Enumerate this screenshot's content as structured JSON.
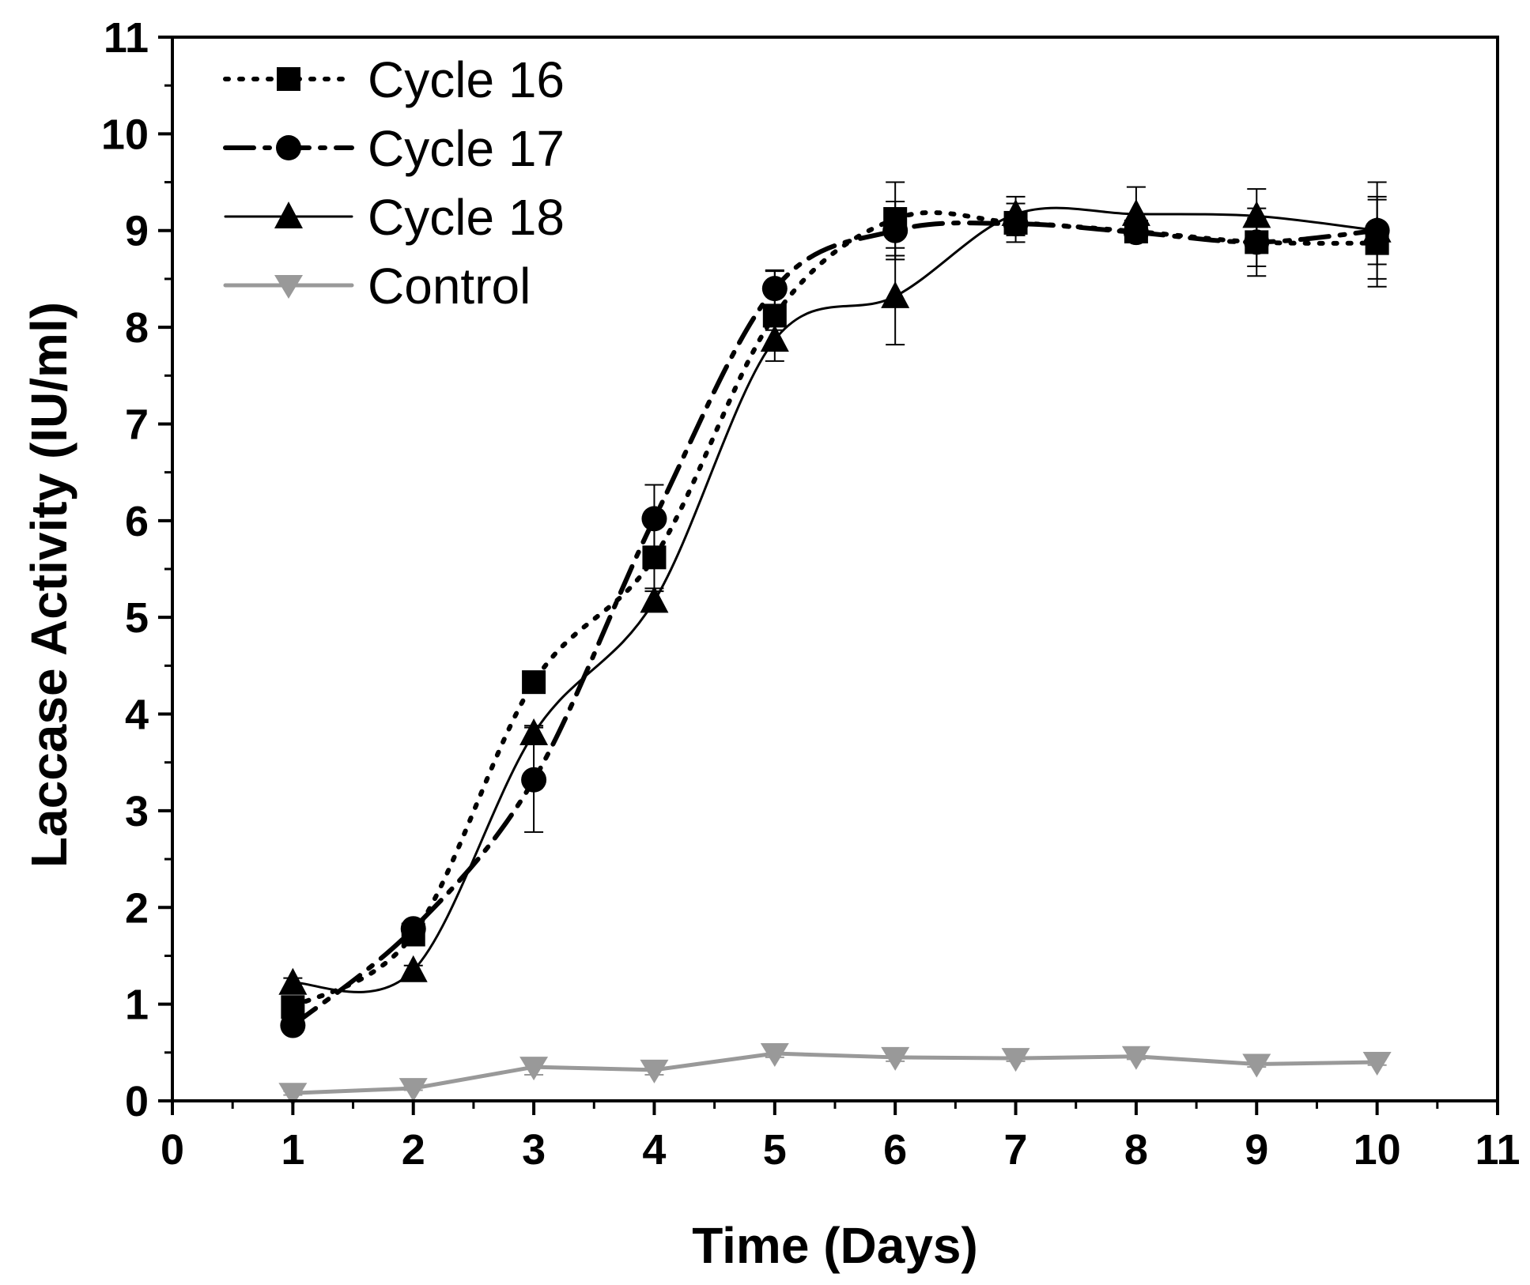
{
  "chart_data": {
    "type": "line",
    "xlabel": "Time (Days)",
    "ylabel": "Laccase Activity (IU/ml)",
    "xlim": [
      0,
      11
    ],
    "ylim": [
      0,
      11
    ],
    "x_ticks": [
      0,
      1,
      2,
      3,
      4,
      5,
      6,
      7,
      8,
      9,
      10,
      11
    ],
    "y_ticks": [
      0,
      1,
      2,
      3,
      4,
      5,
      6,
      7,
      8,
      9,
      10,
      11
    ],
    "grid": false,
    "legend_position": "top-left",
    "x": [
      1,
      2,
      3,
      4,
      5,
      6,
      7,
      8,
      9,
      10
    ],
    "series": [
      {
        "name": "Cycle 16",
        "marker": "square",
        "line_style": "dotted",
        "color": "#000000",
        "values": [
          0.97,
          1.72,
          4.33,
          5.62,
          8.12,
          9.12,
          9.08,
          8.99,
          8.88,
          8.87
        ],
        "errors": [
          0.05,
          0.06,
          0.06,
          0.32,
          0.47,
          0.38,
          0.2,
          0.1,
          0.35,
          0.45
        ]
      },
      {
        "name": "Cycle 17",
        "marker": "circle",
        "line_style": "dash-dot",
        "color": "#000000",
        "values": [
          0.78,
          1.78,
          3.32,
          6.02,
          8.4,
          9.0,
          9.07,
          8.98,
          8.88,
          9.0
        ],
        "errors": [
          0.04,
          0.05,
          0.54,
          0.35,
          0.18,
          0.3,
          0.12,
          0.1,
          0.25,
          0.5
        ]
      },
      {
        "name": "Cycle 18",
        "marker": "triangle-up",
        "line_style": "solid",
        "color": "#000000",
        "values": [
          1.22,
          1.35,
          3.8,
          5.17,
          7.87,
          8.32,
          9.17,
          9.17,
          9.15,
          9.0
        ],
        "errors": [
          0.05,
          0.05,
          0.08,
          0.1,
          0.1,
          0.5,
          0.18,
          0.28,
          0.28,
          0.35
        ]
      },
      {
        "name": "Control",
        "marker": "triangle-down",
        "line_style": "solid",
        "color": "#999999",
        "values": [
          0.08,
          0.13,
          0.35,
          0.32,
          0.49,
          0.45,
          0.44,
          0.46,
          0.38,
          0.4
        ],
        "errors": [
          0.02,
          0.02,
          0.08,
          0.05,
          0.04,
          0.04,
          0.03,
          0.03,
          0.03,
          0.03
        ]
      }
    ]
  }
}
